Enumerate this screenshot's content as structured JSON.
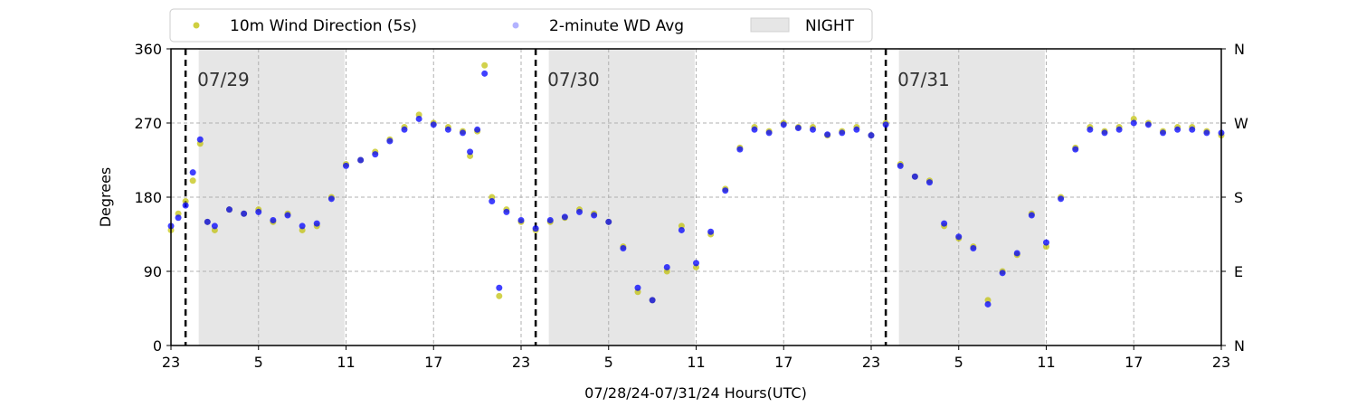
{
  "chart_data": {
    "type": "scatter",
    "xlabel": "07/28/24-07/31/24  Hours(UTC)",
    "ylabel": "Degrees",
    "x_ticks": [
      "23",
      "5",
      "11",
      "17",
      "23",
      "5",
      "11",
      "17",
      "23",
      "5",
      "11",
      "17",
      "23"
    ],
    "x_range_hours": [
      0,
      72
    ],
    "ylim": [
      0,
      360
    ],
    "y_ticks": [
      0,
      90,
      180,
      270,
      360
    ],
    "y_right_ticks": [
      "N",
      "E",
      "S",
      "W",
      "N"
    ],
    "grid": true,
    "legend_position": "top",
    "colors": {
      "wind_5s": "#bfbf00",
      "wind_avg": "#0000ff",
      "night": "#e6e6e6",
      "date_line": "#000000"
    },
    "date_markers": [
      {
        "hour": 1,
        "label": "07/29"
      },
      {
        "hour": 25,
        "label": "07/30"
      },
      {
        "hour": 49,
        "label": "07/31"
      }
    ],
    "night_spans": [
      [
        1.9,
        11.9
      ],
      [
        25.9,
        35.9
      ],
      [
        49.9,
        59.9
      ]
    ],
    "series": [
      {
        "name": "10m Wind Direction (5s)",
        "style": "scatter",
        "points": [
          [
            0,
            140
          ],
          [
            0.5,
            160
          ],
          [
            1,
            175
          ],
          [
            1.5,
            200
          ],
          [
            2,
            245
          ],
          [
            2.5,
            150
          ],
          [
            3,
            140
          ],
          [
            4,
            165
          ],
          [
            5,
            160
          ],
          [
            6,
            165
          ],
          [
            7,
            150
          ],
          [
            8,
            160
          ],
          [
            9,
            140
          ],
          [
            10,
            145
          ],
          [
            11,
            180
          ],
          [
            12,
            220
          ],
          [
            13,
            225
          ],
          [
            14,
            235
          ],
          [
            15,
            250
          ],
          [
            16,
            265
          ],
          [
            17,
            280
          ],
          [
            18,
            270
          ],
          [
            19,
            265
          ],
          [
            20,
            260
          ],
          [
            20.5,
            230
          ],
          [
            21,
            260
          ],
          [
            21.5,
            340
          ],
          [
            22,
            180
          ],
          [
            22.5,
            60
          ],
          [
            23,
            165
          ],
          [
            24,
            150
          ],
          [
            25,
            140
          ],
          [
            26,
            150
          ],
          [
            27,
            155
          ],
          [
            28,
            165
          ],
          [
            29,
            160
          ],
          [
            30,
            150
          ],
          [
            31,
            120
          ],
          [
            32,
            65
          ],
          [
            33,
            55
          ],
          [
            34,
            90
          ],
          [
            35,
            145
          ],
          [
            36,
            95
          ],
          [
            37,
            135
          ],
          [
            38,
            190
          ],
          [
            39,
            240
          ],
          [
            40,
            265
          ],
          [
            41,
            260
          ],
          [
            42,
            270
          ],
          [
            43,
            265
          ],
          [
            44,
            265
          ],
          [
            45,
            255
          ],
          [
            46,
            260
          ],
          [
            47,
            265
          ],
          [
            48,
            255
          ],
          [
            49,
            270
          ],
          [
            50,
            220
          ],
          [
            51,
            205
          ],
          [
            52,
            200
          ],
          [
            53,
            145
          ],
          [
            54,
            130
          ],
          [
            55,
            120
          ],
          [
            56,
            55
          ],
          [
            57,
            90
          ],
          [
            58,
            110
          ],
          [
            59,
            160
          ],
          [
            60,
            120
          ],
          [
            61,
            180
          ],
          [
            62,
            240
          ],
          [
            63,
            265
          ],
          [
            64,
            260
          ],
          [
            65,
            265
          ],
          [
            66,
            275
          ],
          [
            67,
            270
          ],
          [
            68,
            260
          ],
          [
            69,
            265
          ],
          [
            70,
            265
          ],
          [
            71,
            260
          ],
          [
            72,
            255
          ]
        ]
      },
      {
        "name": "2-minute WD Avg",
        "style": "scatter",
        "points": [
          [
            0,
            145
          ],
          [
            0.5,
            155
          ],
          [
            1,
            170
          ],
          [
            1.5,
            210
          ],
          [
            2,
            250
          ],
          [
            2.5,
            150
          ],
          [
            3,
            145
          ],
          [
            4,
            165
          ],
          [
            5,
            160
          ],
          [
            6,
            162
          ],
          [
            7,
            152
          ],
          [
            8,
            158
          ],
          [
            9,
            145
          ],
          [
            10,
            148
          ],
          [
            11,
            178
          ],
          [
            12,
            218
          ],
          [
            13,
            225
          ],
          [
            14,
            232
          ],
          [
            15,
            248
          ],
          [
            16,
            262
          ],
          [
            17,
            275
          ],
          [
            18,
            268
          ],
          [
            19,
            262
          ],
          [
            20,
            258
          ],
          [
            20.5,
            235
          ],
          [
            21,
            262
          ],
          [
            21.5,
            330
          ],
          [
            22,
            175
          ],
          [
            22.5,
            70
          ],
          [
            23,
            162
          ],
          [
            24,
            152
          ],
          [
            25,
            142
          ],
          [
            26,
            152
          ],
          [
            27,
            156
          ],
          [
            28,
            162
          ],
          [
            29,
            158
          ],
          [
            30,
            150
          ],
          [
            31,
            118
          ],
          [
            32,
            70
          ],
          [
            33,
            55
          ],
          [
            34,
            95
          ],
          [
            35,
            140
          ],
          [
            36,
            100
          ],
          [
            37,
            138
          ],
          [
            38,
            188
          ],
          [
            39,
            238
          ],
          [
            40,
            262
          ],
          [
            41,
            258
          ],
          [
            42,
            268
          ],
          [
            43,
            264
          ],
          [
            44,
            262
          ],
          [
            45,
            256
          ],
          [
            46,
            258
          ],
          [
            47,
            262
          ],
          [
            48,
            255
          ],
          [
            49,
            268
          ],
          [
            50,
            218
          ],
          [
            51,
            205
          ],
          [
            52,
            198
          ],
          [
            53,
            148
          ],
          [
            54,
            132
          ],
          [
            55,
            118
          ],
          [
            56,
            50
          ],
          [
            57,
            88
          ],
          [
            58,
            112
          ],
          [
            59,
            158
          ],
          [
            60,
            125
          ],
          [
            61,
            178
          ],
          [
            62,
            238
          ],
          [
            63,
            262
          ],
          [
            64,
            258
          ],
          [
            65,
            262
          ],
          [
            66,
            270
          ],
          [
            67,
            268
          ],
          [
            68,
            258
          ],
          [
            69,
            262
          ],
          [
            70,
            262
          ],
          [
            71,
            258
          ],
          [
            72,
            258
          ]
        ]
      }
    ],
    "legend": {
      "items": [
        "10m Wind Direction (5s)",
        "2-minute WD Avg",
        "NIGHT"
      ]
    }
  }
}
